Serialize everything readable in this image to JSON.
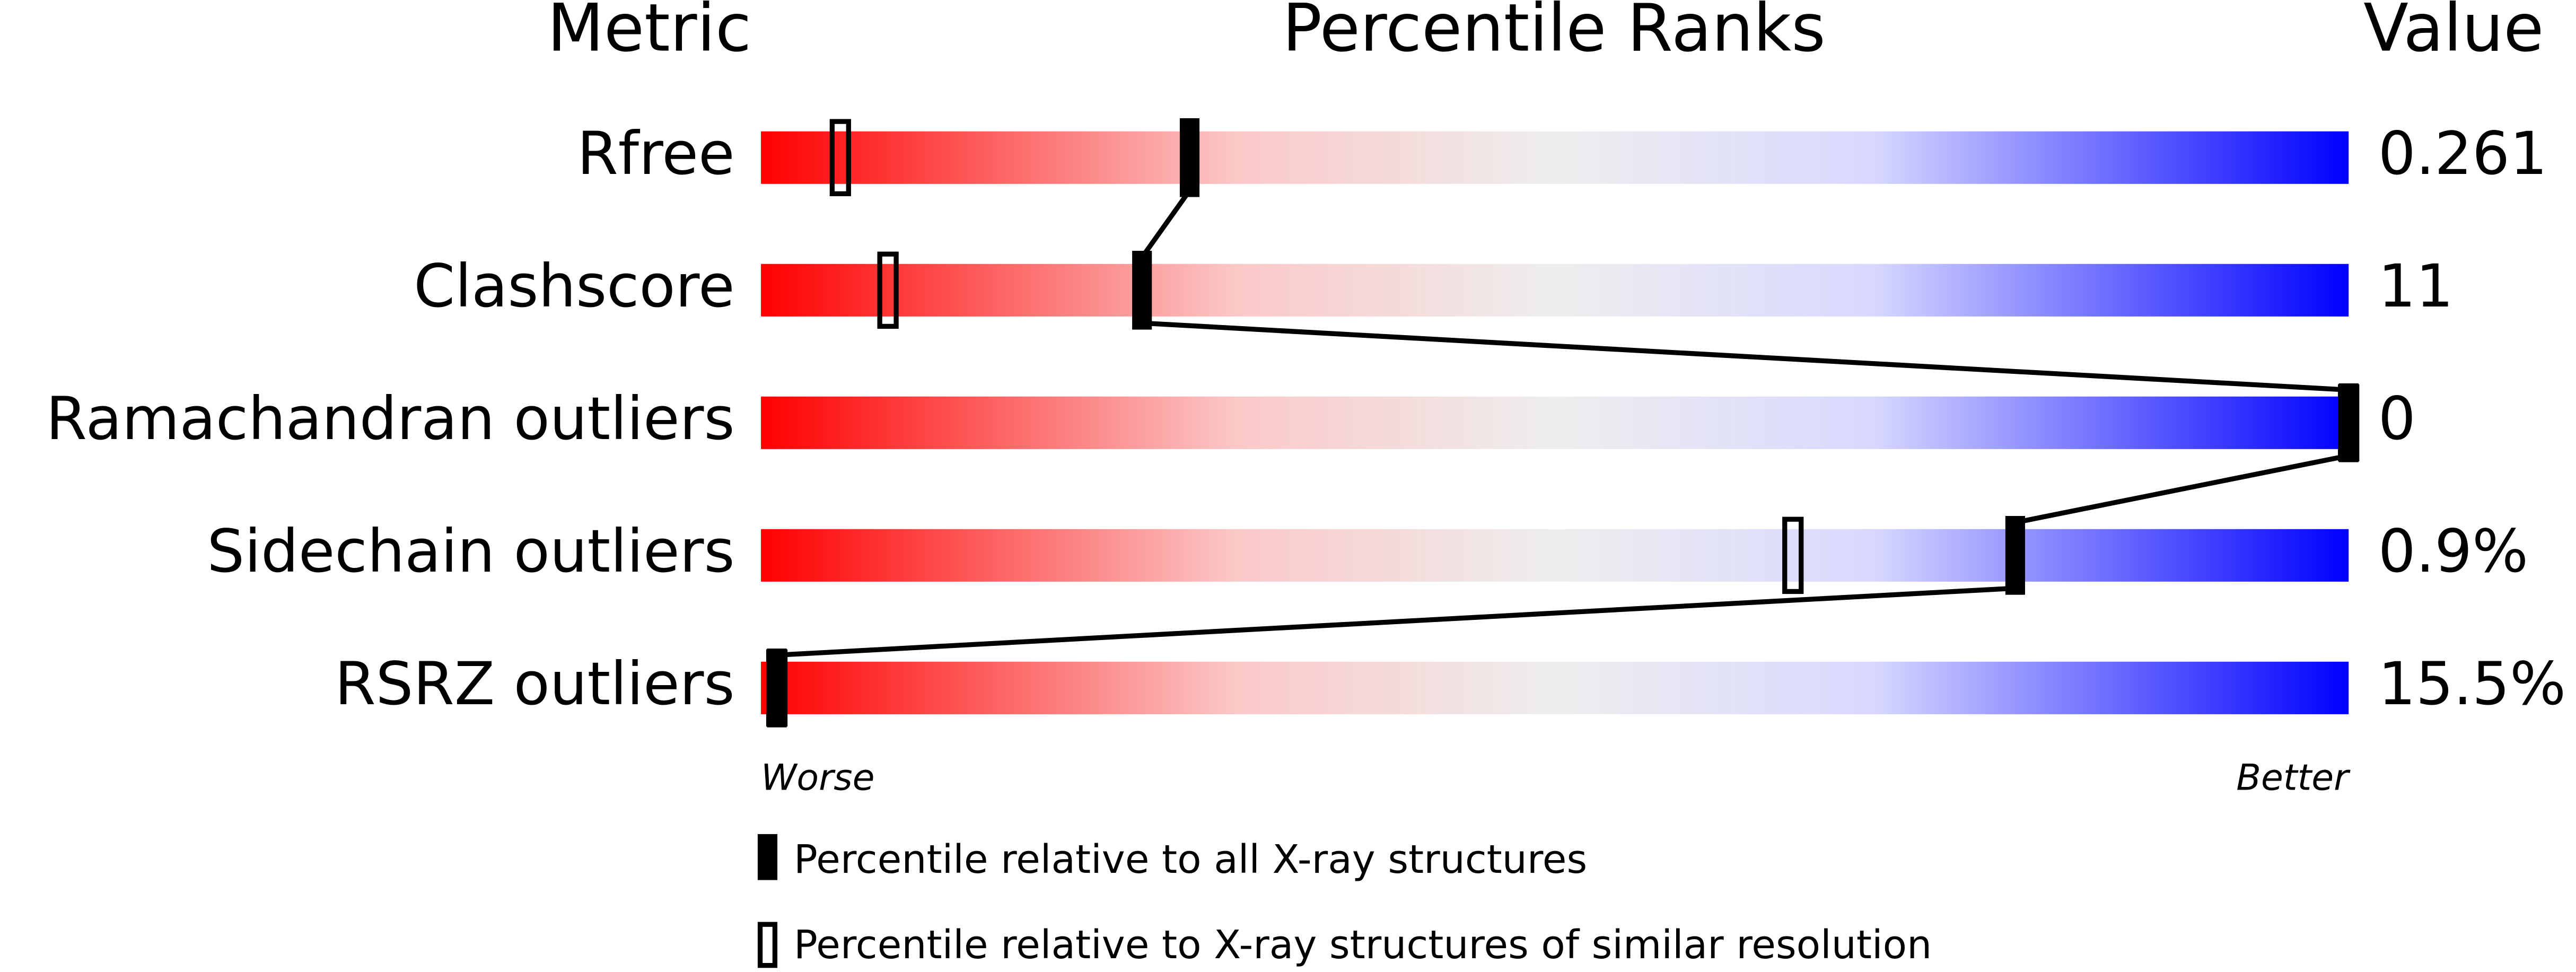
{
  "chart_data": {
    "type": "percentile-slider",
    "title": "Percentile Ranks",
    "metric_header": "Metric",
    "value_header": "Value",
    "categories": [
      "Rfree",
      "Clashscore",
      "Ramachandran outliers",
      "Sidechain outliers",
      "RSRZ outliers"
    ],
    "metric_values": [
      "0.261",
      "11",
      "0",
      "0.9%",
      "15.5%"
    ],
    "series": [
      {
        "name": "Percentile relative to all X-ray structures",
        "color": "#000000",
        "values": [
          27,
          24,
          100,
          79,
          1
        ]
      },
      {
        "name": "Percentile relative to X-ray structures of similar resolution",
        "color": "#000000",
        "values": [
          5,
          8,
          100,
          65,
          1
        ]
      }
    ],
    "xlim": [
      0,
      100
    ],
    "worse_label": "Worse",
    "better_label": "Better"
  }
}
